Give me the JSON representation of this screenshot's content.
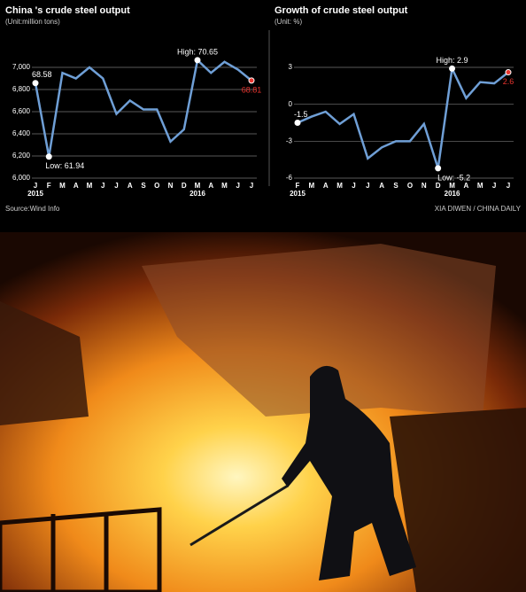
{
  "chart_data": [
    {
      "type": "line",
      "title": "China 's crude steel output",
      "subtitle": "(Unit:million tons)",
      "categories": [
        "J",
        "F",
        "M",
        "A",
        "M",
        "J",
        "J",
        "A",
        "S",
        "O",
        "N",
        "D",
        "M",
        "A",
        "M",
        "J",
        "J"
      ],
      "category_groups": [
        "2015",
        null,
        null,
        null,
        null,
        null,
        null,
        null,
        null,
        null,
        null,
        null,
        "2016",
        null,
        null,
        null,
        null
      ],
      "series": [
        {
          "name": "Crude steel output",
          "color": "#6f9fd6",
          "values": [
            6858,
            6194,
            6950,
            6900,
            7000,
            6900,
            6580,
            6700,
            6620,
            6620,
            6330,
            6440,
            7065,
            6950,
            7050,
            6980,
            6881
          ],
          "value_labels": [
            "68.58",
            "Low: 61.94",
            null,
            null,
            null,
            null,
            null,
            null,
            null,
            null,
            null,
            null,
            "High: 70.65",
            null,
            null,
            null,
            "68.81"
          ]
        }
      ],
      "ylim": [
        6000,
        7000
      ],
      "yticks": [
        {
          "value": 6000,
          "label": "6,000"
        },
        {
          "value": 6200,
          "label": "6,200"
        },
        {
          "value": 6400,
          "label": "6,400"
        },
        {
          "value": 6600,
          "label": "6,600"
        },
        {
          "value": 6800,
          "label": "6,800"
        },
        {
          "value": 7000,
          "label": "7,000"
        }
      ],
      "grid": true,
      "highlight_last": true,
      "highlight_color": "#e8342e"
    },
    {
      "type": "line",
      "title": "Growth of crude steel output",
      "subtitle": "(Unit: %)",
      "categories": [
        "F",
        "M",
        "A",
        "M",
        "J",
        "J",
        "A",
        "S",
        "O",
        "N",
        "D",
        "M",
        "A",
        "M",
        "J",
        "J"
      ],
      "category_groups": [
        "2015",
        null,
        null,
        null,
        null,
        null,
        null,
        null,
        null,
        null,
        null,
        "2016",
        null,
        null,
        null,
        null
      ],
      "series": [
        {
          "name": "Growth",
          "color": "#6f9fd6",
          "values": [
            -1.5,
            -1.0,
            -0.6,
            -1.6,
            -0.8,
            -4.4,
            -3.5,
            -3.0,
            -3.0,
            -1.6,
            -5.2,
            2.9,
            0.5,
            1.8,
            1.7,
            2.6
          ],
          "value_labels": [
            "-1.5",
            null,
            null,
            null,
            null,
            null,
            null,
            null,
            null,
            null,
            "Low: -5.2",
            "High: 2.9",
            null,
            null,
            null,
            "2.6"
          ]
        }
      ],
      "ylim": [
        -6,
        3
      ],
      "yticks": [
        -6,
        -3,
        0,
        3
      ],
      "grid": true,
      "highlight_last": true,
      "highlight_color": "#e8342e"
    }
  ],
  "source": "Source:Wind Info",
  "credit": "XIA DIWEN / CHINA DAILY"
}
